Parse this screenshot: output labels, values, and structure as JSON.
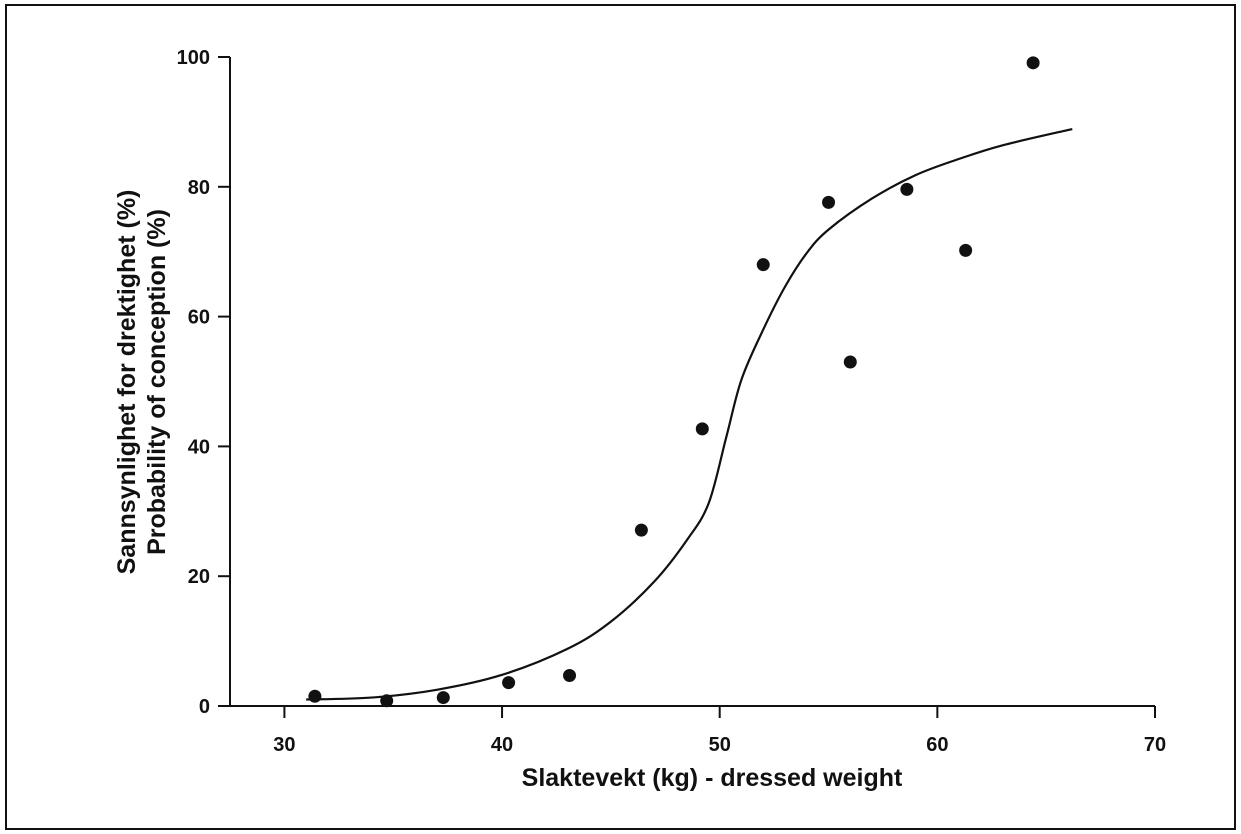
{
  "chart_data": {
    "type": "scatter",
    "xlabel": "Slaktevekt (kg) - dressed weight",
    "ylabel_line1": "Sannsynlighet for drektighet (%)",
    "ylabel_line2": "Probability of conception (%)",
    "xlim": [
      27.5,
      70
    ],
    "ylim": [
      0,
      100
    ],
    "xticks": [
      30,
      40,
      50,
      60,
      70
    ],
    "yticks": [
      0,
      20,
      40,
      60,
      80,
      100
    ],
    "grid": false,
    "points": [
      {
        "x": 31.4,
        "y": 1.5
      },
      {
        "x": 34.7,
        "y": 0.8
      },
      {
        "x": 37.3,
        "y": 1.3
      },
      {
        "x": 40.3,
        "y": 3.6
      },
      {
        "x": 43.1,
        "y": 4.7
      },
      {
        "x": 46.4,
        "y": 27.1
      },
      {
        "x": 49.2,
        "y": 42.7
      },
      {
        "x": 52.0,
        "y": 68.0
      },
      {
        "x": 55.0,
        "y": 77.6
      },
      {
        "x": 56.0,
        "y": 53.0
      },
      {
        "x": 58.6,
        "y": 79.6
      },
      {
        "x": 61.3,
        "y": 70.2
      },
      {
        "x": 64.4,
        "y": 99.1
      }
    ],
    "fit_curve": [
      {
        "x": 31.0,
        "y": 1.0
      },
      {
        "x": 34.0,
        "y": 1.3
      },
      {
        "x": 37.0,
        "y": 2.5
      },
      {
        "x": 40.0,
        "y": 4.8
      },
      {
        "x": 43.0,
        "y": 8.8
      },
      {
        "x": 45.0,
        "y": 13.0
      },
      {
        "x": 47.0,
        "y": 19.2
      },
      {
        "x": 48.5,
        "y": 25.6
      },
      {
        "x": 49.5,
        "y": 31.3
      },
      {
        "x": 50.3,
        "y": 41.4
      },
      {
        "x": 51.0,
        "y": 50.3
      },
      {
        "x": 52.0,
        "y": 58.0
      },
      {
        "x": 53.0,
        "y": 64.6
      },
      {
        "x": 54.0,
        "y": 69.8
      },
      {
        "x": 55.0,
        "y": 73.4
      },
      {
        "x": 57.0,
        "y": 78.2
      },
      {
        "x": 59.0,
        "y": 81.8
      },
      {
        "x": 61.0,
        "y": 84.3
      },
      {
        "x": 63.0,
        "y": 86.4
      },
      {
        "x": 66.2,
        "y": 88.9
      }
    ]
  }
}
